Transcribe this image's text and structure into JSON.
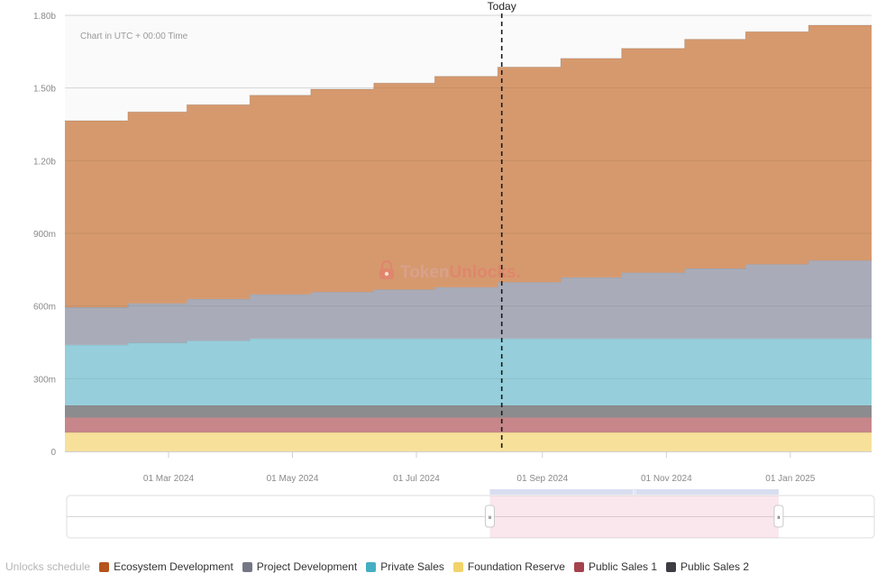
{
  "chart_data": {
    "type": "area",
    "stacked": true,
    "step": true,
    "title": "",
    "note": "Chart in UTC + 00:00 Time",
    "watermark": "TokenUnlocks.",
    "ylim": [
      0,
      1800000000
    ],
    "yticks": [
      {
        "value": 0,
        "label": "0"
      },
      {
        "value": 300000000,
        "label": "300m"
      },
      {
        "value": 600000000,
        "label": "600m"
      },
      {
        "value": 900000000,
        "label": "900m"
      },
      {
        "value": 1200000000,
        "label": "1.20b"
      },
      {
        "value": 1500000000,
        "label": "1.50b"
      },
      {
        "value": 1800000000,
        "label": "1.80b"
      }
    ],
    "xrange": [
      "2024-01-10",
      "2025-02-10"
    ],
    "xticks": [
      {
        "date": "2024-03-01",
        "label": "01 Mar 2024"
      },
      {
        "date": "2024-05-01",
        "label": "01 May 2024"
      },
      {
        "date": "2024-07-01",
        "label": "01 Jul 2024"
      },
      {
        "date": "2024-09-01",
        "label": "01 Sep 2024"
      },
      {
        "date": "2024-11-01",
        "label": "01 Nov 2024"
      },
      {
        "date": "2025-01-01",
        "label": "01 Jan 2025"
      }
    ],
    "today": {
      "date": "2024-08-12",
      "label": "Today"
    },
    "dates": [
      "2024-01-10",
      "2024-02-10",
      "2024-03-10",
      "2024-04-10",
      "2024-05-10",
      "2024-06-10",
      "2024-07-10",
      "2024-08-10",
      "2024-09-10",
      "2024-10-10",
      "2024-11-10",
      "2024-12-10",
      "2025-01-10",
      "2025-02-10"
    ],
    "series": [
      {
        "name": "Foundation Reserve",
        "color": "#f7e09a",
        "values": [
          78000000,
          78000000,
          78000000,
          78000000,
          78000000,
          78000000,
          78000000,
          78000000,
          78000000,
          78000000,
          78000000,
          78000000,
          78000000,
          78000000
        ]
      },
      {
        "name": "Public Sales 1",
        "color": "#c7868a",
        "values": [
          62000000,
          62000000,
          62000000,
          62000000,
          62000000,
          62000000,
          62000000,
          62000000,
          62000000,
          62000000,
          62000000,
          62000000,
          62000000,
          62000000
        ]
      },
      {
        "name": "Public Sales 2",
        "color": "#8c8c8f",
        "values": [
          50000000,
          50000000,
          50000000,
          50000000,
          50000000,
          50000000,
          50000000,
          50000000,
          50000000,
          50000000,
          50000000,
          50000000,
          50000000,
          50000000
        ]
      },
      {
        "name": "Private Sales",
        "color": "#96cedb",
        "values": [
          250000000,
          258000000,
          267000000,
          276000000,
          276000000,
          276000000,
          276000000,
          276000000,
          276000000,
          276000000,
          276000000,
          276000000,
          276000000,
          276000000
        ]
      },
      {
        "name": "Project Development",
        "color": "#a9acb8",
        "values": [
          155000000,
          163000000,
          172000000,
          182000000,
          192000000,
          202000000,
          212000000,
          232000000,
          252000000,
          272000000,
          289000000,
          306000000,
          322000000,
          337000000
        ]
      },
      {
        "name": "Ecosystem Development",
        "color": "#d6996e",
        "values": [
          770000000,
          790000000,
          802000000,
          822000000,
          837000000,
          852000000,
          870000000,
          888000000,
          904000000,
          925000000,
          946000000,
          960000000,
          971000000,
          958000000
        ]
      }
    ],
    "legend_title": "Unlocks schedule",
    "legend": [
      {
        "name": "Ecosystem Development",
        "color": "#b5541c"
      },
      {
        "name": "Project Development",
        "color": "#757685"
      },
      {
        "name": "Private Sales",
        "color": "#44aec2"
      },
      {
        "name": "Foundation Reserve",
        "color": "#f1d36a"
      },
      {
        "name": "Public Sales 1",
        "color": "#a4434e"
      },
      {
        "name": "Public Sales 2",
        "color": "#3d3e44"
      }
    ]
  },
  "navigator": {
    "range_start": "2024-08-05",
    "range_end": "2024-12-25",
    "handle_glyph": "⏸"
  }
}
